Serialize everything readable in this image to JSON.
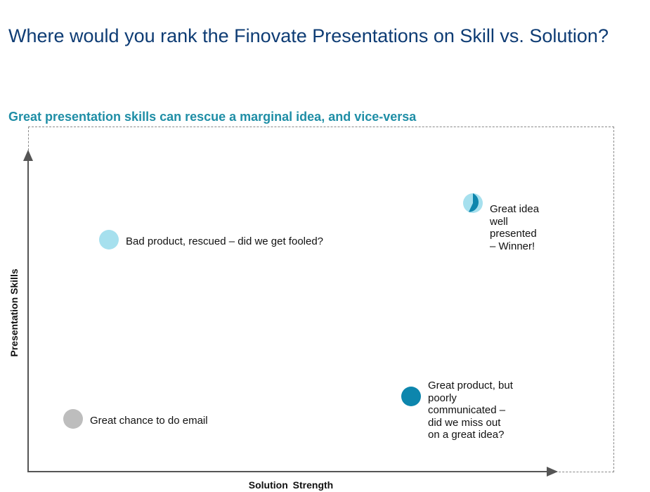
{
  "title": "Where would you rank the Finovate Presentations on Skill vs. Solution?",
  "subtitle": "Great presentation skills can rescue a marginal idea, and vice-versa",
  "axes": {
    "x_label": "Solution  Strength",
    "y_label": "Presentation Skills"
  },
  "colors": {
    "title": "#0e3c74",
    "subtitle": "#1f8ea6",
    "light_blue": "#a6e0ee",
    "dark_blue": "#0d86ad",
    "gray": "#bdbdbd",
    "axis": "#555555"
  },
  "quadrants": {
    "top_left": {
      "marker": "light-blue-dot",
      "label_lines": [
        "Bad product, rescued – did we get fooled?"
      ]
    },
    "top_right": {
      "marker": "half-light-half-dark-dot",
      "label_lines": [
        "Great idea",
        "well",
        "presented",
        "– Winner!"
      ]
    },
    "bottom_left": {
      "marker": "gray-dot",
      "label_lines": [
        "Great chance to do email"
      ]
    },
    "bottom_right": {
      "marker": "dark-blue-dot",
      "label_lines": [
        "Great product, but",
        "poorly",
        "communicated  –",
        "did we miss out",
        "on  a great idea?"
      ]
    }
  }
}
